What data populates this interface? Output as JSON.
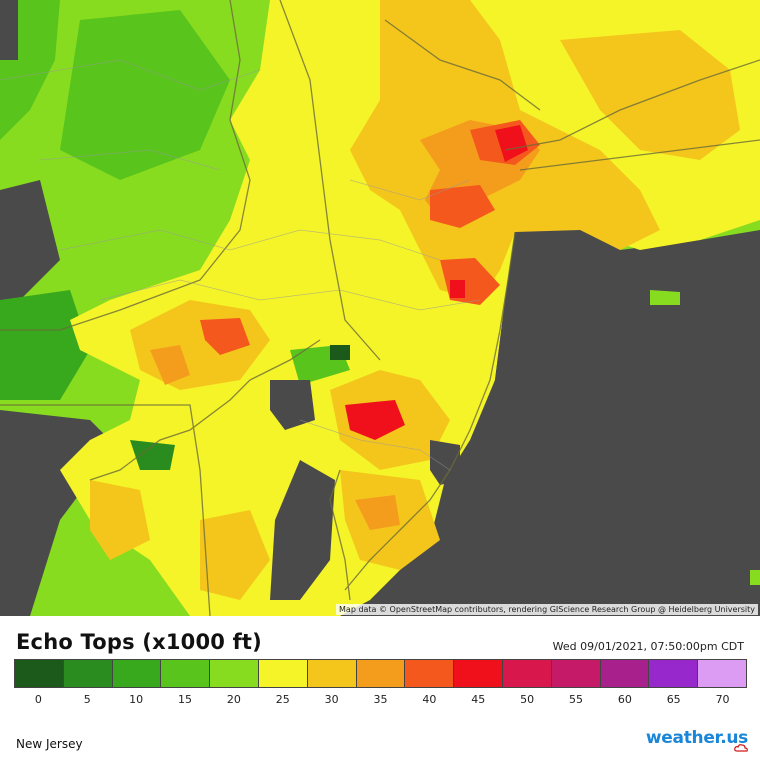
{
  "map": {
    "attribution": "Map data © OpenStreetMap contributors, rendering GIScience Research Group @ Heidelberg University",
    "colors": {
      "no_data": "#4a4a4a",
      "ocean": "#4a4a4a"
    }
  },
  "legend": {
    "title": "Echo Tops (x1000 ft)",
    "timestamp": "Wed 09/01/2021, 07:50:00pm CDT",
    "scale": [
      {
        "value": "0",
        "color": "#1c5a1c"
      },
      {
        "value": "5",
        "color": "#2a8c1e"
      },
      {
        "value": "10",
        "color": "#38a81c"
      },
      {
        "value": "15",
        "color": "#58c41c"
      },
      {
        "value": "20",
        "color": "#88dc20"
      },
      {
        "value": "25",
        "color": "#f4f428"
      },
      {
        "value": "30",
        "color": "#f4c61c"
      },
      {
        "value": "35",
        "color": "#f49c1c"
      },
      {
        "value": "40",
        "color": "#f4581c"
      },
      {
        "value": "45",
        "color": "#f0101c"
      },
      {
        "value": "50",
        "color": "#d8184c"
      },
      {
        "value": "55",
        "color": "#c41a68"
      },
      {
        "value": "60",
        "color": "#a8208c"
      },
      {
        "value": "65",
        "color": "#9628cc"
      },
      {
        "value": "70",
        "color": "#dc9cf4"
      }
    ]
  },
  "footer": {
    "region": "New Jersey",
    "brand": "weather.us"
  }
}
